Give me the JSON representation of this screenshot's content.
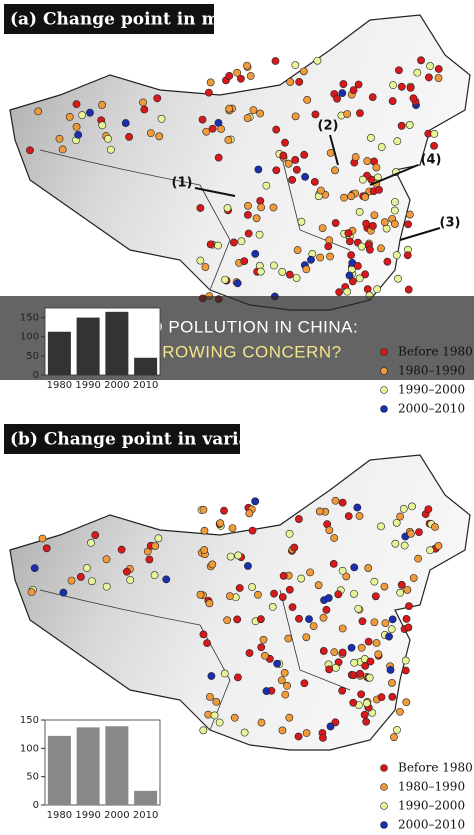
{
  "panels": [
    {
      "title": "(a) Change point in mean",
      "labels": [
        "(1)",
        "(2)",
        "(3)",
        "(4)"
      ],
      "legend": [
        {
          "name": "Before 1980",
          "color": "#d7191c"
        },
        {
          "name": "1980–1990",
          "color": "#f09a3a"
        },
        {
          "name": "1990–2000",
          "color": "#e6f598"
        },
        {
          "name": "2000–2010",
          "color": "#1a2fb0"
        }
      ]
    },
    {
      "title": "(b) Change point in variance",
      "legend": [
        {
          "name": "Before 1980",
          "color": "#d7191c"
        },
        {
          "name": "1980–1990",
          "color": "#f09a3a"
        },
        {
          "name": "1990–2000",
          "color": "#e6f598"
        },
        {
          "name": "2000–2010",
          "color": "#1a2fb0"
        }
      ]
    }
  ],
  "chart_data": [
    {
      "type": "bar",
      "categories": [
        "1980",
        "1990",
        "2000",
        "2010"
      ],
      "values": [
        113,
        150,
        165,
        45
      ],
      "color": "#333333",
      "ylim": [
        0,
        175
      ],
      "yticks": [
        0,
        50,
        100,
        150
      ]
    },
    {
      "type": "bar",
      "categories": [
        "1980",
        "1990",
        "2000",
        "2010"
      ],
      "values": [
        122,
        137,
        139,
        25
      ],
      "color": "#888888",
      "ylim": [
        0,
        150
      ],
      "yticks": [
        0,
        50,
        100,
        150
      ]
    }
  ],
  "banner": {
    "line1": "LAND POLLUTION IN CHINA:",
    "line2": "A GROWING CONCERN?"
  }
}
